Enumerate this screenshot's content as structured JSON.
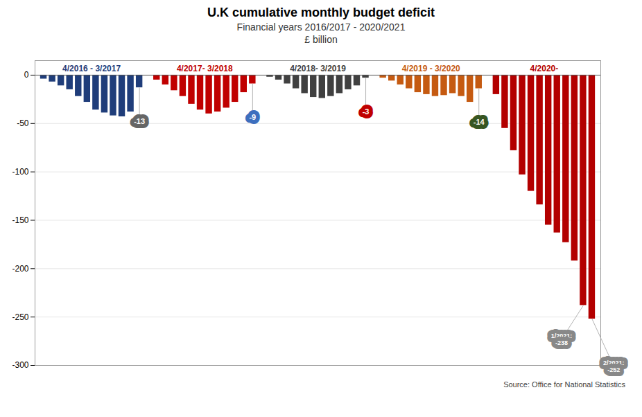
{
  "chart_data": {
    "type": "bar",
    "title": "U.K cumulative monthly budget deficit",
    "subtitle": "Financial years 2016/2017 - 2020/2021",
    "ylabel": "£ billion",
    "source": "Source: Office for National Statistics",
    "categories": [
      null,
      null,
      null,
      null,
      null,
      null,
      null,
      null,
      null,
      null,
      null,
      null
    ],
    "series": [
      {
        "name": "4/2016 - 3/2017",
        "color": "#1F3D7A",
        "values": [
          -4,
          -7,
          -11,
          -15,
          -22,
          -28,
          -36,
          -39,
          -42,
          -43,
          -38,
          -13
        ]
      },
      {
        "name": "4/2017- 3/2018",
        "color": "#c00000",
        "values": [
          -5,
          -10,
          -16,
          -22,
          -30,
          -36,
          -40,
          -38,
          -34,
          -28,
          -18,
          -9
        ]
      },
      {
        "name": "4/2018- 3/2019",
        "color": "#404040",
        "values": [
          -2,
          -5,
          -9,
          -14,
          -19,
          -23,
          -24,
          -22,
          -19,
          -15,
          -11,
          -3
        ]
      },
      {
        "name": "4/2019 - 3/2020",
        "color": "#c55a11",
        "values": [
          -3,
          -6,
          -10,
          -14,
          -18,
          -20,
          -22,
          -21,
          -19,
          -22,
          -28,
          -14
        ]
      },
      {
        "name": "4/2020-",
        "color": "#b30000",
        "values": [
          -20,
          -55,
          -78,
          -103,
          -120,
          -134,
          -155,
          -163,
          -173,
          -192,
          -238,
          -252
        ]
      }
    ],
    "annotations": [
      {
        "series": 0,
        "index": 11,
        "text": "-13",
        "color": "#666666"
      },
      {
        "series": 1,
        "index": 11,
        "text": "-9",
        "color": "#3d6fbe"
      },
      {
        "series": 2,
        "index": 11,
        "text": "-3",
        "color": "#c00000"
      },
      {
        "series": 3,
        "index": 11,
        "text": "-14",
        "color": "#375623"
      },
      {
        "series": 4,
        "index": 10,
        "text": "1/2021:\n-238",
        "color": "#888888"
      },
      {
        "series": 4,
        "index": 11,
        "text": "2/2021:\n-252",
        "color": "#888888"
      }
    ],
    "ylim": [
      -300,
      15
    ],
    "yticks": [
      0,
      -50,
      -100,
      -150,
      -200,
      -250,
      -300
    ],
    "grid": true,
    "tick_labels": "y"
  }
}
